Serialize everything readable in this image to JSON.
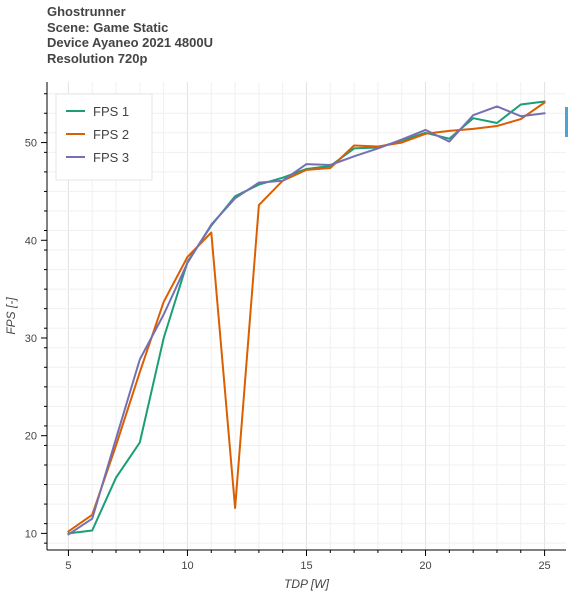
{
  "chart_data": {
    "type": "line",
    "title_lines": [
      "Ghostrunner",
      "Scene: Game Static",
      "Device Ayaneo 2021 4800U",
      "Resolution 720p"
    ],
    "xlabel": "TDP [W]",
    "ylabel": "FPS [-]",
    "xlim": [
      4.1,
      25.9
    ],
    "ylim": [
      8.3,
      56.2
    ],
    "x_ticks": [
      5,
      10,
      15,
      20,
      25
    ],
    "y_ticks": [
      10,
      20,
      30,
      40,
      50
    ],
    "grid": true,
    "legend_position": "top-left",
    "x": [
      5,
      6,
      7,
      8,
      9,
      10,
      11,
      12,
      13,
      14,
      15,
      16,
      17,
      18,
      19,
      20,
      21,
      22,
      23,
      24,
      25
    ],
    "series": [
      {
        "name": "FPS 1",
        "color": "#1b9e77",
        "values": [
          10.0,
          10.3,
          15.7,
          19.3,
          30.0,
          37.8,
          41.5,
          44.5,
          45.7,
          46.4,
          47.3,
          47.6,
          49.4,
          49.5,
          50.2,
          51.0,
          50.4,
          52.5,
          52.0,
          53.9,
          54.2
        ]
      },
      {
        "name": "FPS 2",
        "color": "#d95f02",
        "values": [
          10.2,
          11.9,
          19.0,
          26.5,
          33.7,
          38.3,
          40.8,
          12.6,
          43.6,
          46.1,
          47.2,
          47.4,
          49.7,
          49.6,
          50.0,
          50.9,
          51.2,
          51.4,
          51.7,
          52.4,
          54.1
        ]
      },
      {
        "name": "FPS 3",
        "color": "#7570b3",
        "values": [
          9.9,
          11.5,
          19.7,
          27.8,
          32.4,
          37.7,
          41.6,
          44.3,
          45.9,
          46.1,
          47.8,
          47.7,
          48.6,
          49.4,
          50.3,
          51.3,
          50.1,
          52.8,
          53.7,
          52.7,
          53.0
        ]
      }
    ]
  },
  "toolbar": {
    "indicator_color": "#4ba3d6"
  }
}
